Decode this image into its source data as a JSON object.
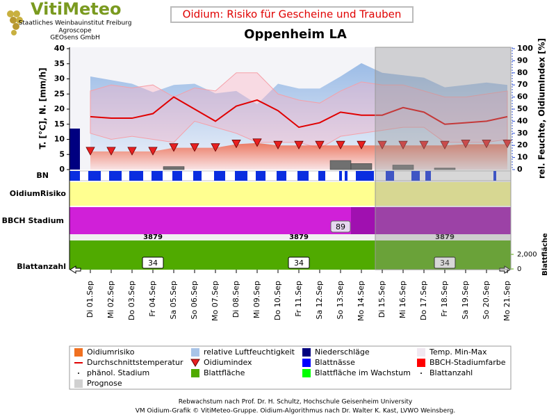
{
  "header": {
    "logo": "VitiMeteo",
    "lines": [
      "Staatliches Weinbauinstitut Freiburg",
      "Agroscope",
      "GEOsens GmbH"
    ],
    "title": "Oidium: Risiko für Gescheine und Trauben",
    "station": "Oppenheim LA"
  },
  "chart_data": {
    "type": "line",
    "categories": [
      "Di 01.Sep",
      "Mi 02.Sep",
      "Do 03.Sep",
      "Fr 04.Sep",
      "Sa 05.Sep",
      "So 06.Sep",
      "Mo 07.Sep",
      "Di 08.Sep",
      "Mi 09.Sep",
      "Do 10.Sep",
      "Fr 11.Sep",
      "Sa 12.Sep",
      "So 13.Sep",
      "Mo 14.Sep",
      "Di 15.Sep",
      "Mi 16.Sep",
      "Do 17.Sep",
      "Fr 18.Sep",
      "Sa 19.Sep",
      "So 20.Sep",
      "Mo 21.Sep"
    ],
    "forecast_from": "Di 15.Sep",
    "ylabel": "T. [°C], N. [mm/h]",
    "y2label": "rel. Feuchte, OidiumIndex [%]",
    "ylim": [
      0,
      40
    ],
    "yticks": [
      0,
      5,
      10,
      15,
      20,
      25,
      30,
      35,
      40
    ],
    "y2lim": [
      0,
      100
    ],
    "y2ticks": [
      0,
      10,
      20,
      30,
      40,
      50,
      60,
      70,
      80,
      90,
      100
    ],
    "mean_temp": {
      "color": "#e00000",
      "values": [
        17.5,
        17,
        17,
        18.5,
        24,
        20,
        16,
        21,
        23,
        19.5,
        14,
        15.5,
        19,
        18,
        18,
        20.5,
        19,
        15,
        15.5,
        16,
        17.5
      ]
    },
    "temp_min": {
      "values": [
        12,
        10,
        11,
        10,
        9,
        16,
        14,
        12,
        9,
        9,
        9,
        7,
        11,
        12,
        13,
        14,
        14,
        9,
        9,
        9,
        10
      ]
    },
    "temp_max": {
      "values": [
        26,
        28,
        27,
        28,
        24,
        27,
        26,
        32,
        32,
        25,
        23,
        22,
        26,
        29,
        28,
        28,
        26,
        24,
        24,
        25,
        26
      ]
    },
    "humidity": {
      "axis": "y2",
      "values": [
        77,
        74,
        71,
        64,
        70,
        71,
        63,
        65,
        54,
        71,
        67,
        67,
        77,
        88,
        80,
        78,
        76,
        68,
        70,
        72,
        70
      ]
    },
    "oidium_index": {
      "axis": "y2",
      "color": "#e82020",
      "values": [
        15,
        15,
        15,
        15,
        18,
        18,
        18,
        21,
        22,
        20,
        20,
        20,
        20,
        20,
        20,
        20,
        20,
        20,
        21,
        21,
        21
      ]
    },
    "precipitation": {
      "color": "#707070",
      "values": [
        0,
        0,
        0,
        0,
        1,
        0,
        0,
        0,
        0,
        0,
        0,
        0,
        3,
        2,
        0,
        1.5,
        0,
        0.5,
        0,
        0,
        0
      ]
    },
    "rows": {
      "bn": "BN",
      "risk": "OidiumRisiko",
      "bbch": "BBCH Stadium",
      "leaves": "Blattanzahl",
      "area": "Blattfläche"
    },
    "bbch_label": 89,
    "phenol_labels": [
      3879,
      3879,
      3879
    ],
    "leaf_counts": [
      34,
      34,
      34
    ],
    "y3ticks": [
      0,
      {
        "value": 2000,
        "label": "2,000"
      }
    ],
    "legend": [
      {
        "name": "Oidiumrisiko",
        "color": "#f07020",
        "symbol": "rect"
      },
      {
        "name": "relative Luftfeuchtigkeit",
        "color": "#a8c4e8",
        "symbol": "rect"
      },
      {
        "name": "Niederschläge",
        "color": "#000080",
        "symbol": "rect"
      },
      {
        "name": "Temp. Min-Max",
        "color": "#f0e8f0",
        "symbol": "rect"
      },
      {
        "name": "Durchschnittstemperatur",
        "color": "#e00000",
        "symbol": "line"
      },
      {
        "name": "Oidiumindex",
        "color": "#e82020",
        "symbol": "triangle"
      },
      {
        "name": "Blattnässe",
        "color": "#0000ff",
        "symbol": "rect"
      },
      {
        "name": "BBCH-Stadiumfarbe",
        "color": "#ff0000",
        "symbol": "rect"
      },
      {
        "name": "phänol. Stadium",
        "color": "#000000",
        "symbol": "dot"
      },
      {
        "name": "Blattfläche",
        "color": "#50aa00",
        "symbol": "rect"
      },
      {
        "name": "Blattfläche im Wachstum",
        "color": "#00ff00",
        "symbol": "rect"
      },
      {
        "name": "Blattanzahl",
        "color": "#000000",
        "symbol": "dot"
      },
      {
        "name": "Prognose",
        "color": "#d0d0d0",
        "symbol": "rect"
      }
    ]
  },
  "footer": [
    "Rebwachstum nach Prof. Dr. H. Schultz, Hochschule Geisenheim University",
    "VM Oidium-Grafik © VitiMeteo-Gruppe. Oidium-Algorithmus nach Dr. Walter K. Kast, LVWO Weinsberg."
  ]
}
